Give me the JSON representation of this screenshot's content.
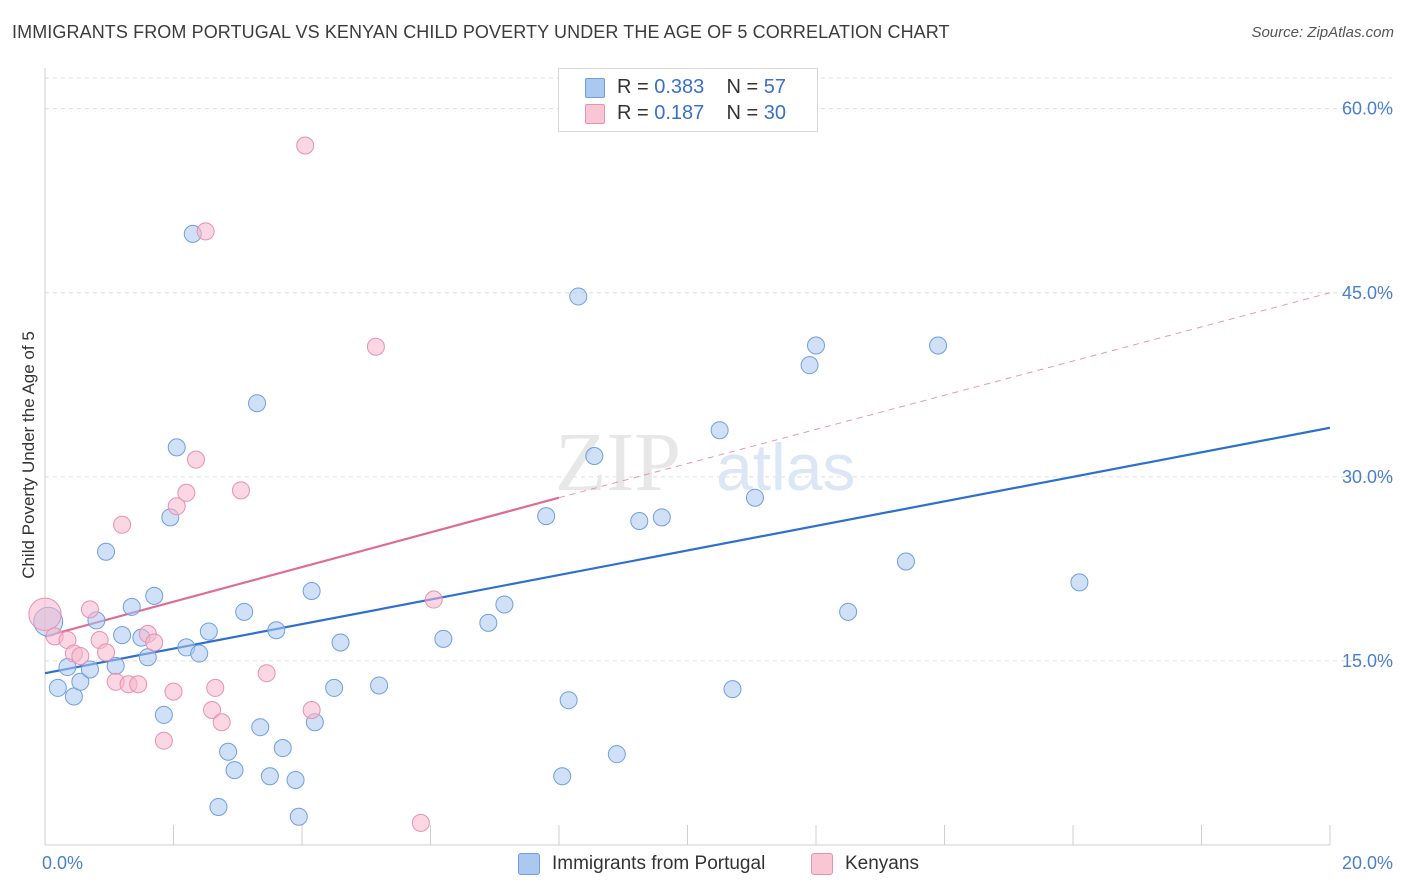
{
  "title": "IMMIGRANTS FROM PORTUGAL VS KENYAN CHILD POVERTY UNDER THE AGE OF 5 CORRELATION CHART",
  "source": "Source: ZipAtlas.com",
  "watermark": {
    "zip": "ZIP",
    "atlas": "atlas"
  },
  "legend": [
    {
      "r_label": "R =",
      "r_value": "0.383",
      "n_label": "N =",
      "n_value": "57"
    },
    {
      "r_label": "R =",
      "r_value": "0.187",
      "n_label": "N =",
      "n_value": "30"
    }
  ],
  "bottom_legend": [
    {
      "label": "Immigrants from Portugal"
    },
    {
      "label": "Kenyans"
    }
  ],
  "colors": {
    "blue_fill": "#aac8f0",
    "blue_stroke": "#6f9fe0",
    "blue_line": "#2f6fcf",
    "pink_fill": "#f5b6cb",
    "pink_stroke": "#e890ae",
    "pink_line": "#e06b95",
    "grid": "#dddddd",
    "tick_text": "#4a7fd0"
  },
  "chart_data": {
    "type": "scatter",
    "title": "IMMIGRANTS FROM PORTUGAL VS KENYAN CHILD POVERTY UNDER THE AGE OF 5 CORRELATION CHART",
    "xlabel": "",
    "ylabel": "Child Poverty Under the Age of 5",
    "xlim": [
      0,
      20
    ],
    "ylim": [
      0,
      62.5
    ],
    "y_ticks": [
      15,
      30,
      45,
      60
    ],
    "y_tick_labels": [
      "15.0%",
      "30.0%",
      "45.0%",
      "60.0%"
    ],
    "x_tick_labels": [
      "0.0%",
      "20.0%"
    ],
    "x_minor_ticks": [
      2,
      4,
      6,
      8,
      10,
      12,
      14,
      16,
      18,
      20
    ],
    "series": [
      {
        "name": "Immigrants from Portugal",
        "color": "blue",
        "trend": {
          "x": [
            0,
            20
          ],
          "y": [
            14.0,
            34.0
          ],
          "style": "solid"
        },
        "points": [
          [
            0.05,
            18.2,
            1.7
          ],
          [
            0.2,
            12.8,
            1
          ],
          [
            0.35,
            14.5,
            1
          ],
          [
            0.45,
            12.1,
            1
          ],
          [
            0.55,
            13.3,
            1
          ],
          [
            0.7,
            14.3,
            1
          ],
          [
            0.8,
            18.3,
            1
          ],
          [
            0.95,
            23.9,
            1
          ],
          [
            1.1,
            14.6,
            1
          ],
          [
            1.2,
            17.1,
            1
          ],
          [
            1.35,
            19.4,
            1
          ],
          [
            1.5,
            16.9,
            1
          ],
          [
            1.6,
            15.3,
            1
          ],
          [
            1.7,
            20.3,
            1
          ],
          [
            1.85,
            10.6,
            1
          ],
          [
            1.95,
            26.7,
            1
          ],
          [
            2.05,
            32.4,
            1
          ],
          [
            2.2,
            16.1,
            1
          ],
          [
            2.3,
            49.8,
            1
          ],
          [
            2.4,
            15.6,
            1
          ],
          [
            2.55,
            17.4,
            1
          ],
          [
            2.85,
            7.6,
            1
          ],
          [
            2.95,
            6.1,
            1
          ],
          [
            3.1,
            19.0,
            1
          ],
          [
            3.3,
            36.0,
            1
          ],
          [
            2.7,
            3.1,
            1
          ],
          [
            3.35,
            9.6,
            1
          ],
          [
            3.5,
            5.6,
            1
          ],
          [
            3.6,
            17.5,
            1
          ],
          [
            3.7,
            7.9,
            1
          ],
          [
            3.9,
            5.3,
            1
          ],
          [
            3.95,
            2.3,
            1
          ],
          [
            4.15,
            20.7,
            1
          ],
          [
            4.2,
            10.0,
            1
          ],
          [
            4.5,
            12.8,
            1
          ],
          [
            4.6,
            16.5,
            1
          ],
          [
            5.2,
            13.0,
            1
          ],
          [
            6.2,
            16.8,
            1
          ],
          [
            6.9,
            18.1,
            1
          ],
          [
            7.15,
            19.6,
            1
          ],
          [
            7.8,
            26.8,
            1
          ],
          [
            8.05,
            5.6,
            1
          ],
          [
            8.15,
            11.8,
            1
          ],
          [
            8.3,
            44.7,
            1
          ],
          [
            8.55,
            31.7,
            1
          ],
          [
            8.9,
            7.4,
            1
          ],
          [
            9.25,
            26.4,
            1
          ],
          [
            9.6,
            26.7,
            1
          ],
          [
            10.5,
            33.8,
            1
          ],
          [
            10.7,
            12.7,
            1
          ],
          [
            11.05,
            28.3,
            1
          ],
          [
            11.9,
            39.1,
            1
          ],
          [
            12.0,
            40.7,
            1
          ],
          [
            12.5,
            19.0,
            1
          ],
          [
            13.4,
            23.1,
            1
          ],
          [
            13.9,
            40.7,
            1
          ],
          [
            16.1,
            21.4,
            1
          ]
        ]
      },
      {
        "name": "Kenyans",
        "color": "pink",
        "trend": {
          "x": [
            0,
            8.0
          ],
          "y": [
            17.0,
            28.3
          ],
          "style": "solid",
          "extend_to": [
            20,
            45.0
          ]
        },
        "points": [
          [
            0.0,
            18.8,
            1.9
          ],
          [
            0.15,
            17.0,
            1
          ],
          [
            0.35,
            16.7,
            1
          ],
          [
            0.45,
            15.6,
            1
          ],
          [
            0.55,
            15.4,
            1
          ],
          [
            0.7,
            19.2,
            1
          ],
          [
            0.85,
            16.7,
            1
          ],
          [
            0.95,
            15.7,
            1
          ],
          [
            1.1,
            13.3,
            1
          ],
          [
            1.2,
            26.1,
            1
          ],
          [
            1.3,
            13.1,
            1
          ],
          [
            1.45,
            13.1,
            1
          ],
          [
            1.6,
            17.2,
            1
          ],
          [
            1.7,
            16.5,
            1
          ],
          [
            1.85,
            8.5,
            1
          ],
          [
            2.0,
            12.5,
            1
          ],
          [
            2.05,
            27.6,
            1
          ],
          [
            2.2,
            28.7,
            1
          ],
          [
            2.35,
            31.4,
            1
          ],
          [
            2.5,
            50.0,
            1
          ],
          [
            2.6,
            11.0,
            1
          ],
          [
            2.65,
            12.8,
            1
          ],
          [
            2.75,
            10.0,
            1
          ],
          [
            3.05,
            28.9,
            1
          ],
          [
            3.45,
            14.0,
            1
          ],
          [
            4.05,
            57.0,
            1
          ],
          [
            4.15,
            11.0,
            1
          ],
          [
            5.15,
            40.6,
            1
          ],
          [
            5.85,
            1.8,
            1
          ],
          [
            6.05,
            20.0,
            1
          ]
        ]
      }
    ]
  }
}
